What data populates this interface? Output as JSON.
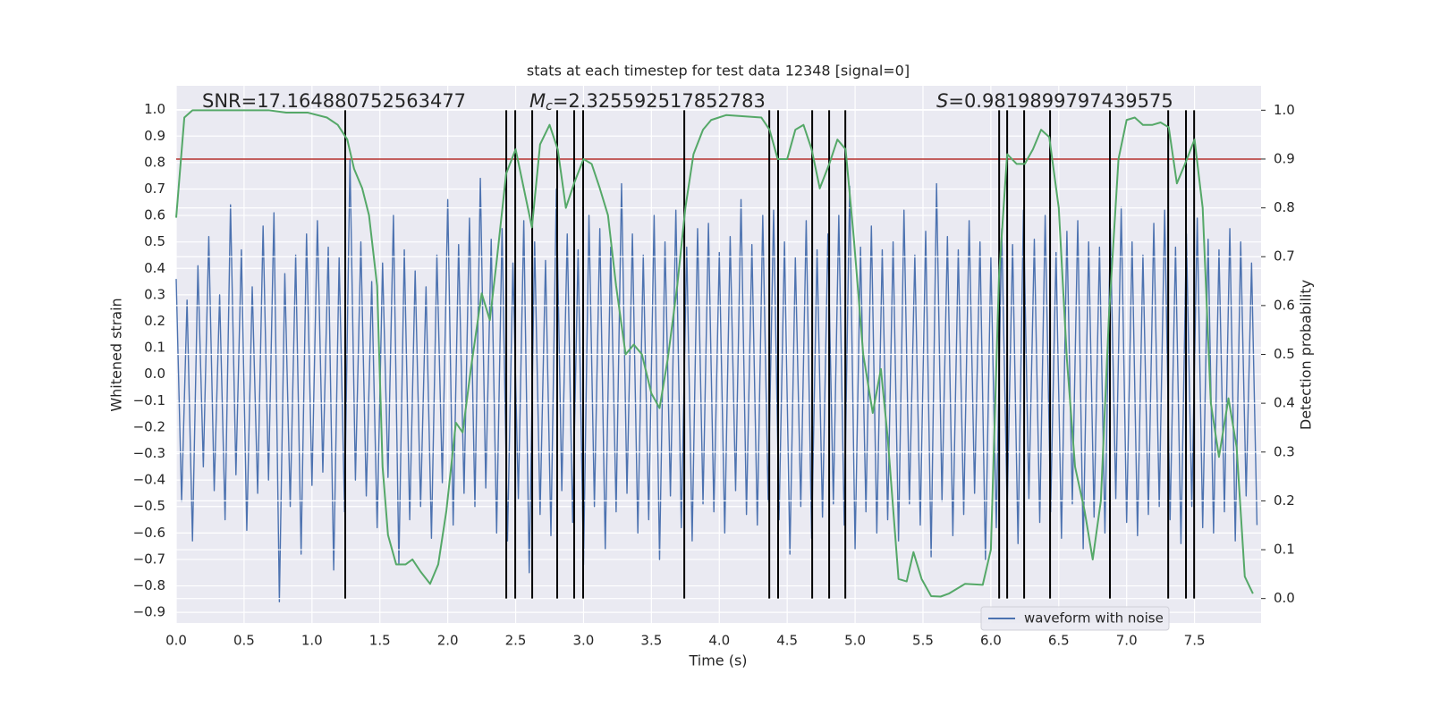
{
  "chart_data": {
    "type": "line",
    "title": "stats at each timestep for test data 12348 [signal=0]",
    "xlabel": "Time (s)",
    "ylabel": "Whitened strain",
    "y2label": "Detection probability",
    "grid": true,
    "legend_loc": "lower right",
    "xlim": [
      0,
      7.99
    ],
    "xticks": [
      {
        "value": 0,
        "label": "0.0"
      },
      {
        "value": 0.5,
        "label": "0.5"
      },
      {
        "value": 1,
        "label": "1.0"
      },
      {
        "value": 1.5,
        "label": "1.5"
      },
      {
        "value": 2,
        "label": "2.0"
      },
      {
        "value": 2.5,
        "label": "2.5"
      },
      {
        "value": 3,
        "label": "3.0"
      },
      {
        "value": 3.5,
        "label": "3.5"
      },
      {
        "value": 4,
        "label": "4.0"
      },
      {
        "value": 4.5,
        "label": "4.5"
      },
      {
        "value": 5,
        "label": "5.0"
      },
      {
        "value": 5.5,
        "label": "5.5"
      },
      {
        "value": 6,
        "label": "6.0"
      },
      {
        "value": 6.5,
        "label": "6.5"
      },
      {
        "value": 7,
        "label": "7.0"
      },
      {
        "value": 7.5,
        "label": "7.5"
      }
    ],
    "ylim": [
      -0.94,
      1.09
    ],
    "yticks": [
      {
        "value": -0.9,
        "label": "−0.9"
      },
      {
        "value": -0.8,
        "label": "−0.8"
      },
      {
        "value": -0.7,
        "label": "−0.7"
      },
      {
        "value": -0.6,
        "label": "−0.6"
      },
      {
        "value": -0.5,
        "label": "−0.5"
      },
      {
        "value": -0.4,
        "label": "−0.4"
      },
      {
        "value": -0.3,
        "label": "−0.3"
      },
      {
        "value": -0.2,
        "label": "−0.2"
      },
      {
        "value": -0.1,
        "label": "−0.1"
      },
      {
        "value": 0,
        "label": "0.0"
      },
      {
        "value": 0.1,
        "label": "0.1"
      },
      {
        "value": 0.2,
        "label": "0.2"
      },
      {
        "value": 0.3,
        "label": "0.3"
      },
      {
        "value": 0.4,
        "label": "0.4"
      },
      {
        "value": 0.5,
        "label": "0.5"
      },
      {
        "value": 0.6,
        "label": "0.6"
      },
      {
        "value": 0.7,
        "label": "0.7"
      },
      {
        "value": 0.8,
        "label": "0.8"
      },
      {
        "value": 0.9,
        "label": "0.9"
      },
      {
        "value": 1,
        "label": "1.0"
      }
    ],
    "y2lim": [
      -0.05,
      1.05
    ],
    "y2ticks": [
      {
        "value": 0,
        "label": "0.0"
      },
      {
        "value": 0.1,
        "label": "0.1"
      },
      {
        "value": 0.2,
        "label": "0.2"
      },
      {
        "value": 0.3,
        "label": "0.3"
      },
      {
        "value": 0.4,
        "label": "0.4"
      },
      {
        "value": 0.5,
        "label": "0.5"
      },
      {
        "value": 0.6,
        "label": "0.6"
      },
      {
        "value": 0.7,
        "label": "0.7"
      },
      {
        "value": 0.8,
        "label": "0.8"
      },
      {
        "value": 0.9,
        "label": "0.9"
      },
      {
        "value": 1,
        "label": "1.0"
      }
    ],
    "series": [
      {
        "name": "waveform with noise",
        "color": "#4c72b0",
        "x": [
          0,
          0.04,
          0.08,
          0.12,
          0.16,
          0.2,
          0.24,
          0.28,
          0.32,
          0.36,
          0.4,
          0.44,
          0.48,
          0.52,
          0.56,
          0.6,
          0.64,
          0.68,
          0.72,
          0.76,
          0.8,
          0.84,
          0.88,
          0.92,
          0.96,
          1,
          1.04,
          1.08,
          1.12,
          1.16,
          1.2,
          1.24,
          1.28,
          1.32,
          1.36,
          1.4,
          1.44,
          1.48,
          1.52,
          1.56,
          1.6,
          1.64,
          1.68,
          1.72,
          1.76,
          1.8,
          1.84,
          1.88,
          1.92,
          1.96,
          2,
          2.04,
          2.08,
          2.12,
          2.16,
          2.2,
          2.24,
          2.28,
          2.32,
          2.36,
          2.4,
          2.44,
          2.48,
          2.52,
          2.56,
          2.6,
          2.64,
          2.68,
          2.72,
          2.76,
          2.8,
          2.84,
          2.88,
          2.92,
          2.96,
          3,
          3.04,
          3.08,
          3.12,
          3.16,
          3.2,
          3.24,
          3.28,
          3.32,
          3.36,
          3.4,
          3.44,
          3.48,
          3.52,
          3.56,
          3.6,
          3.64,
          3.68,
          3.72,
          3.76,
          3.8,
          3.84,
          3.88,
          3.92,
          3.96,
          4,
          4.04,
          4.08,
          4.12,
          4.16,
          4.2,
          4.24,
          4.28,
          4.32,
          4.36,
          4.4,
          4.44,
          4.48,
          4.52,
          4.56,
          4.6,
          4.64,
          4.68,
          4.72,
          4.76,
          4.8,
          4.84,
          4.88,
          4.92,
          4.96,
          5,
          5.04,
          5.08,
          5.12,
          5.16,
          5.2,
          5.24,
          5.28,
          5.32,
          5.36,
          5.4,
          5.44,
          5.48,
          5.52,
          5.56,
          5.6,
          5.64,
          5.68,
          5.72,
          5.76,
          5.8,
          5.84,
          5.88,
          5.92,
          5.96,
          6,
          6.04,
          6.08,
          6.12,
          6.16,
          6.2,
          6.24,
          6.28,
          6.32,
          6.36,
          6.4,
          6.44,
          6.48,
          6.52,
          6.56,
          6.6,
          6.64,
          6.68,
          6.72,
          6.76,
          6.8,
          6.84,
          6.88,
          6.92,
          6.96,
          7,
          7.04,
          7.08,
          7.12,
          7.16,
          7.2,
          7.24,
          7.28,
          7.32,
          7.36,
          7.4,
          7.44,
          7.48,
          7.52,
          7.56,
          7.6,
          7.64,
          7.68,
          7.72,
          7.76,
          7.8,
          7.84,
          7.88,
          7.92,
          7.96
        ],
        "values": [
          0.36,
          -0.48,
          0.28,
          -0.63,
          0.41,
          -0.35,
          0.52,
          -0.44,
          0.3,
          -0.55,
          0.64,
          -0.38,
          0.47,
          -0.59,
          0.33,
          -0.45,
          0.56,
          -0.4,
          0.61,
          -0.86,
          0.38,
          -0.5,
          0.45,
          -0.68,
          0.53,
          -0.42,
          0.58,
          -0.37,
          0.48,
          -0.74,
          0.44,
          -0.52,
          0.81,
          -0.4,
          0.5,
          -0.46,
          0.35,
          -0.58,
          0.42,
          -0.39,
          0.6,
          -0.72,
          0.47,
          -0.55,
          0.39,
          -0.5,
          0.33,
          -0.62,
          0.45,
          -0.41,
          0.66,
          -0.57,
          0.49,
          -0.45,
          0.59,
          -0.5,
          0.74,
          -0.43,
          0.51,
          -0.6,
          0.55,
          -0.63,
          0.42,
          -0.47,
          0.58,
          -0.75,
          0.5,
          -0.53,
          0.43,
          -0.61,
          0.7,
          -0.44,
          0.53,
          -0.56,
          0.47,
          -0.72,
          0.6,
          -0.5,
          0.55,
          -0.66,
          0.48,
          -0.52,
          0.72,
          -0.45,
          0.53,
          -0.6,
          0.45,
          -0.55,
          0.6,
          -0.7,
          0.5,
          -0.46,
          0.62,
          -0.58,
          0.48,
          -0.63,
          0.55,
          -0.49,
          0.57,
          -0.52,
          0.46,
          -0.6,
          0.52,
          -0.44,
          0.66,
          -0.53,
          0.49,
          -0.57,
          0.6,
          -0.48,
          0.62,
          -0.55,
          0.5,
          -0.68,
          0.44,
          -0.5,
          0.58,
          -0.62,
          0.47,
          -0.54,
          0.53,
          -0.49,
          0.6,
          -0.57,
          0.71,
          -0.66,
          0.48,
          -0.52,
          0.56,
          -0.6,
          0.47,
          -0.55,
          0.5,
          -0.63,
          0.62,
          -0.49,
          0.45,
          -0.57,
          0.54,
          -0.69,
          0.72,
          -0.48,
          0.52,
          -0.61,
          0.47,
          -0.53,
          0.58,
          -0.45,
          0.5,
          -0.7,
          0.44,
          -0.58,
          0.55,
          -0.51,
          0.49,
          -0.64,
          0.62,
          -0.47,
          0.51,
          -0.56,
          0.6,
          -0.52,
          0.46,
          -0.62,
          0.54,
          -0.49,
          0.58,
          -0.66,
          0.5,
          -0.54,
          0.48,
          -0.6,
          0.55,
          -0.47,
          0.63,
          -0.56,
          0.5,
          -0.61,
          0.45,
          -0.53,
          0.57,
          -0.5,
          0.62,
          -0.55,
          0.48,
          -0.64,
          0.53,
          -0.5,
          0.59,
          -0.58,
          0.51,
          -0.6,
          0.47,
          -0.52,
          0.55,
          -0.63,
          0.5,
          -0.46,
          0.42,
          -0.57
        ]
      },
      {
        "color": "#55a868",
        "axis": "y2",
        "x": [
          0,
          0.06,
          0.12,
          0.68,
          0.81,
          0.97,
          1.11,
          1.19,
          1.26,
          1.31,
          1.37,
          1.42,
          1.48,
          1.52,
          1.56,
          1.62,
          1.69,
          1.74,
          1.8,
          1.87,
          1.93,
          1.99,
          2.06,
          2.11,
          2.17,
          2.25,
          2.31,
          2.36,
          2.43,
          2.5,
          2.56,
          2.62,
          2.68,
          2.75,
          2.81,
          2.87,
          2.93,
          3,
          3.06,
          3.12,
          3.18,
          3.24,
          3.31,
          3.37,
          3.43,
          3.5,
          3.56,
          3.62,
          3.69,
          3.75,
          3.81,
          3.88,
          3.94,
          4.05,
          4.31,
          4.37,
          4.43,
          4.5,
          4.56,
          4.62,
          4.68,
          4.74,
          4.81,
          4.87,
          4.93,
          4.99,
          5.06,
          5.13,
          5.19,
          5.24,
          5.32,
          5.38,
          5.43,
          5.49,
          5.56,
          5.63,
          5.69,
          5.75,
          5.81,
          5.94,
          6,
          6.06,
          6.12,
          6.19,
          6.25,
          6.31,
          6.37,
          6.43,
          6.5,
          6.56,
          6.62,
          6.69,
          6.75,
          6.81,
          6.87,
          6.94,
          7,
          7.06,
          7.12,
          7.19,
          7.25,
          7.31,
          7.37,
          7.43,
          7.5,
          7.56,
          7.62,
          7.68,
          7.75,
          7.81,
          7.87,
          7.93
        ],
        "values": [
          0.78,
          0.985,
          1,
          1,
          0.995,
          0.995,
          0.985,
          0.97,
          0.94,
          0.88,
          0.84,
          0.785,
          0.64,
          0.27,
          0.13,
          0.07,
          0.07,
          0.08,
          0.055,
          0.03,
          0.07,
          0.18,
          0.36,
          0.34,
          0.47,
          0.625,
          0.57,
          0.69,
          0.87,
          0.92,
          0.84,
          0.76,
          0.93,
          0.97,
          0.92,
          0.8,
          0.85,
          0.9,
          0.89,
          0.84,
          0.785,
          0.64,
          0.5,
          0.52,
          0.5,
          0.42,
          0.39,
          0.49,
          0.64,
          0.8,
          0.91,
          0.96,
          0.98,
          0.99,
          0.985,
          0.96,
          0.9,
          0.9,
          0.96,
          0.97,
          0.92,
          0.84,
          0.89,
          0.94,
          0.92,
          0.74,
          0.5,
          0.38,
          0.47,
          0.33,
          0.04,
          0.035,
          0.095,
          0.04,
          0.005,
          0.004,
          0.01,
          0.02,
          0.03,
          0.028,
          0.1,
          0.66,
          0.91,
          0.89,
          0.89,
          0.92,
          0.96,
          0.945,
          0.8,
          0.49,
          0.27,
          0.18,
          0.08,
          0.2,
          0.58,
          0.9,
          0.98,
          0.985,
          0.97,
          0.97,
          0.975,
          0.965,
          0.85,
          0.89,
          0.94,
          0.8,
          0.4,
          0.29,
          0.41,
          0.31,
          0.045,
          0.01
        ]
      }
    ],
    "hlines": [
      {
        "y": 0.9,
        "axis": "y2",
        "color": "#b5322e"
      }
    ],
    "vlines": {
      "axis": "y2",
      "color": "#000000",
      "ymin": 0,
      "ymax": 1,
      "x": [
        1.245,
        2.431,
        2.497,
        2.622,
        2.806,
        2.931,
        2.997,
        3.742,
        4.368,
        4.433,
        4.684,
        4.809,
        4.928,
        6.061,
        6.12,
        6.245,
        6.436,
        6.877,
        7.306,
        7.437,
        7.497
      ]
    },
    "annotations": [
      {
        "symbol": "SNR",
        "italic": false,
        "text": "=17.164880752563477"
      },
      {
        "symbol": "M",
        "subscript": "c",
        "italic": true,
        "text": "=2.325592517852783"
      },
      {
        "symbol": "S",
        "italic": true,
        "text": "=0.9819899797439575"
      }
    ]
  }
}
